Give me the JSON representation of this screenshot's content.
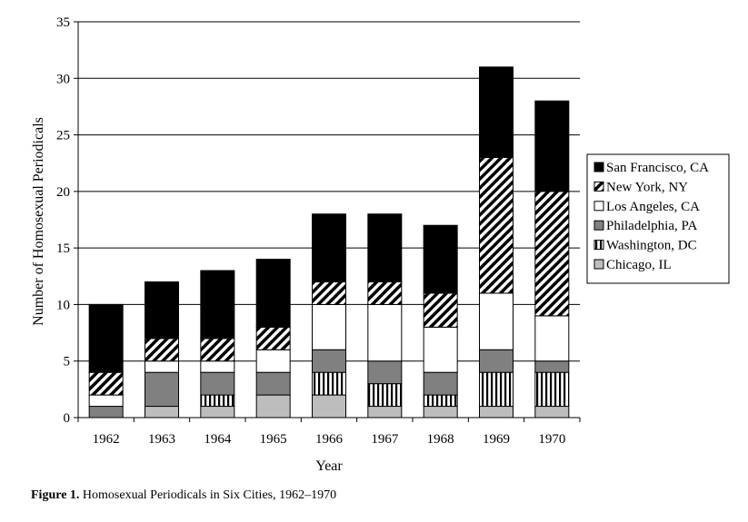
{
  "chart_data": {
    "type": "bar",
    "stacked": true,
    "title": "",
    "xlabel": "Year",
    "ylabel": "Number of Homosexual Periodicals",
    "ylim": [
      0,
      35
    ],
    "yticks": [
      "0",
      "5",
      "10",
      "15",
      "20",
      "25",
      "30",
      "35"
    ],
    "grid": true,
    "legend_position": "right",
    "categories": [
      "1962",
      "1963",
      "1964",
      "1965",
      "1966",
      "1967",
      "1968",
      "1969",
      "1970"
    ],
    "series": [
      {
        "name": "Chicago, IL",
        "fill": "#bdbdbd",
        "pattern": "solid",
        "values": [
          0,
          1,
          1,
          2,
          2,
          1,
          1,
          1,
          1
        ]
      },
      {
        "name": "Washington, DC",
        "fill": "#ffffff",
        "pattern": "vertical-stripes",
        "values": [
          0,
          0,
          1,
          0,
          2,
          2,
          1,
          3,
          3
        ]
      },
      {
        "name": "Philadelphia, PA",
        "fill": "#808080",
        "pattern": "solid",
        "values": [
          1,
          3,
          2,
          2,
          2,
          2,
          2,
          2,
          1
        ]
      },
      {
        "name": "Los Angeles, CA",
        "fill": "#ffffff",
        "pattern": "solid",
        "values": [
          1,
          1,
          1,
          2,
          4,
          5,
          4,
          5,
          4
        ]
      },
      {
        "name": "New York, NY",
        "fill": "#ffffff",
        "pattern": "diagonal-stripes",
        "values": [
          2,
          2,
          2,
          2,
          2,
          2,
          3,
          12,
          11
        ]
      },
      {
        "name": "San Francisco, CA",
        "fill": "#000000",
        "pattern": "solid",
        "values": [
          6,
          5,
          6,
          6,
          6,
          6,
          6,
          8,
          8
        ]
      }
    ],
    "legend_order": [
      "San Francisco, CA",
      "New York, NY",
      "Los Angeles, CA",
      "Philadelphia, PA",
      "Washington, DC",
      "Chicago, IL"
    ]
  },
  "caption": {
    "label": "Figure 1.",
    "text": "Homosexual Periodicals in Six Cities, 1962–1970"
  }
}
